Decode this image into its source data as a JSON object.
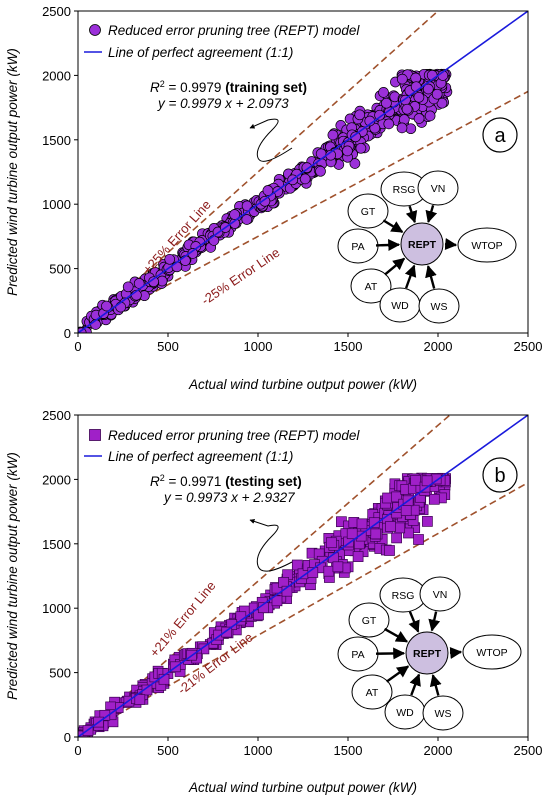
{
  "chart_data": [
    {
      "panel_label": "a",
      "type": "scatter",
      "xlabel": "Actual wind turbine output power (kW)",
      "ylabel": "Predicted wind turbine output power (kW)",
      "xlim": [
        0,
        2500
      ],
      "ylim": [
        0,
        2500
      ],
      "xticks": [
        0,
        500,
        1000,
        1500,
        2000,
        2500
      ],
      "yticks": [
        0,
        500,
        1000,
        1500,
        2000,
        2500
      ],
      "grid": false,
      "legend_placement": "top-left",
      "series": [
        {
          "name": "Reduced error pruning tree (REPT) model",
          "marker": "circle",
          "color": "#9b30d9",
          "edge_color": "#000000"
        },
        {
          "name": "Line of perfect agreement (1:1)",
          "kind": "line",
          "color": "#1a1adc",
          "x": [
            0,
            2500
          ],
          "y": [
            0,
            2500
          ]
        }
      ],
      "error_lines": [
        {
          "label": "+25% Error Line",
          "slope": 1.25,
          "color": "#a0522d"
        },
        {
          "label": "-25% Error Line",
          "slope": 0.75,
          "color": "#a0522d"
        }
      ],
      "stats": {
        "r2_label": "R",
        "r2_sup": "2",
        "r2_value": " = 0.9979 ",
        "set_name": "(training set)",
        "equation": "y = 0.9979 x + 2.0973",
        "slope": 0.9979,
        "intercept": 2.0973
      },
      "diagram": {
        "center": "REPT",
        "inputs": [
          "GT",
          "RSG",
          "VN",
          "PA",
          "AT",
          "WD",
          "WS"
        ],
        "output": "WTOP"
      },
      "scatter_bands": [
        {
          "x0": 0,
          "x1": 500,
          "spread": 55,
          "count": 130
        },
        {
          "x0": 500,
          "x1": 1000,
          "spread": 50,
          "count": 110
        },
        {
          "x0": 1000,
          "x1": 1400,
          "spread": 70,
          "count": 90
        },
        {
          "x0": 1400,
          "x1": 1800,
          "spread": 120,
          "count": 150
        },
        {
          "x0": 1800,
          "x1": 2050,
          "spread": 190,
          "count": 150
        }
      ]
    },
    {
      "panel_label": "b",
      "type": "scatter",
      "xlabel": "Actual wind turbine output power (kW)",
      "ylabel": "Predicted wind turbine output power (kW)",
      "xlim": [
        0,
        2500
      ],
      "ylim": [
        0,
        2500
      ],
      "xticks": [
        0,
        500,
        1000,
        1500,
        2000,
        2500
      ],
      "yticks": [
        0,
        500,
        1000,
        1500,
        2000,
        2500
      ],
      "grid": false,
      "legend_placement": "top-left",
      "series": [
        {
          "name": "Reduced error pruning tree (REPT) model",
          "marker": "square",
          "color": "#a020c8",
          "edge_color": "#3a0050"
        },
        {
          "name": "Line of perfect agreement (1:1)",
          "kind": "line",
          "color": "#1a1adc",
          "x": [
            0,
            2500
          ],
          "y": [
            0,
            2500
          ]
        }
      ],
      "error_lines": [
        {
          "label": "+21% Error Line",
          "slope": 1.21,
          "color": "#a0522d"
        },
        {
          "label": "-21% Error Line",
          "slope": 0.79,
          "color": "#a0522d"
        }
      ],
      "stats": {
        "r2_label": "R",
        "r2_sup": "2",
        "r2_value": " = 0.9971 ",
        "set_name": "(testing set)",
        "equation": "y = 0.9973 x + 2.9327",
        "slope": 0.9973,
        "intercept": 2.9327
      },
      "diagram": {
        "center": "REPT",
        "inputs": [
          "GT",
          "RSG",
          "VN",
          "PA",
          "AT",
          "WD",
          "WS"
        ],
        "output": "WTOP"
      },
      "scatter_bands": [
        {
          "x0": 0,
          "x1": 500,
          "spread": 50,
          "count": 80
        },
        {
          "x0": 500,
          "x1": 1000,
          "spread": 50,
          "count": 70
        },
        {
          "x0": 1000,
          "x1": 1300,
          "spread": 70,
          "count": 55
        },
        {
          "x0": 1300,
          "x1": 1700,
          "spread": 130,
          "count": 90
        },
        {
          "x0": 1700,
          "x1": 2050,
          "spread": 200,
          "count": 110
        }
      ]
    }
  ]
}
